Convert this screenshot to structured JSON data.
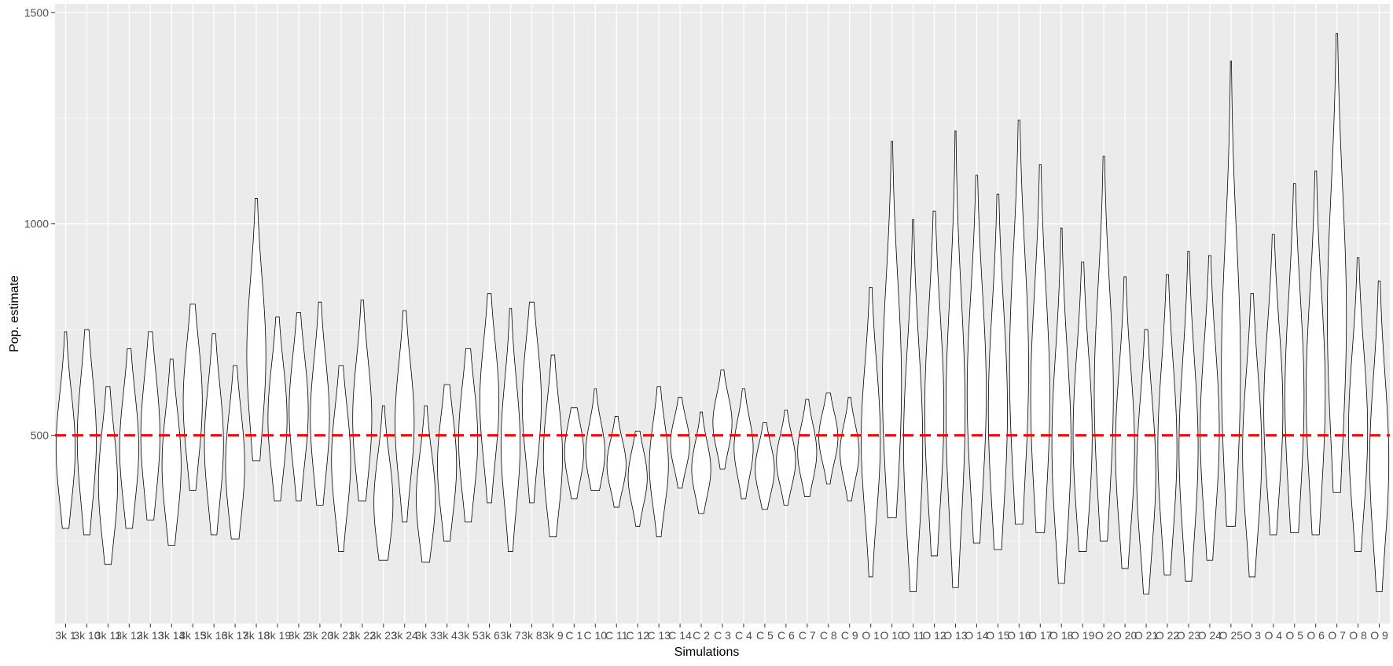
{
  "chart_data": {
    "type": "violin",
    "xlabel": "Simulations",
    "ylabel": "Pop. estimate",
    "ylim": [
      55,
      1520
    ],
    "y_ticks": [
      500,
      1000,
      1500
    ],
    "grid": true,
    "reference_line": {
      "y": 500,
      "color": "#ff0000",
      "style": "dashed"
    },
    "categories": [
      "3k 1",
      "3k 10",
      "3k 11",
      "3k 12",
      "3k 13",
      "3k 14",
      "3k 15",
      "3k 16",
      "3k 17",
      "3k 18",
      "3k 19",
      "3k 2",
      "3k 20",
      "3k 21",
      "3k 22",
      "3k 23",
      "3k 24",
      "3k 3",
      "3k 4",
      "3k 5",
      "3k 6",
      "3k 7",
      "3k 8",
      "3k 9",
      "C 1",
      "C 10",
      "C 11",
      "C 12",
      "C 13",
      "C 14",
      "C 2",
      "C 3",
      "C 4",
      "C 5",
      "C 6",
      "C 7",
      "C 8",
      "C 9",
      "O 1",
      "O 10",
      "O 11",
      "O 12",
      "O 13",
      "O 14",
      "O 15",
      "O 16",
      "O 17",
      "O 18",
      "O 19",
      "O 2",
      "O 20",
      "O 21",
      "O 22",
      "O 23",
      "O 24",
      "O 25",
      "O 3",
      "O 4",
      "O 5",
      "O 6",
      "O 7",
      "O 8",
      "O 9"
    ],
    "violins": [
      {
        "min": 280,
        "max": 745,
        "center": 470,
        "spread": 130
      },
      {
        "min": 265,
        "max": 750,
        "center": 490,
        "spread": 150
      },
      {
        "min": 195,
        "max": 615,
        "center": 385,
        "spread": 130
      },
      {
        "min": 280,
        "max": 705,
        "center": 470,
        "spread": 130
      },
      {
        "min": 300,
        "max": 745,
        "center": 500,
        "spread": 140
      },
      {
        "min": 240,
        "max": 680,
        "center": 430,
        "spread": 130
      },
      {
        "min": 370,
        "max": 810,
        "center": 580,
        "spread": 140
      },
      {
        "min": 265,
        "max": 740,
        "center": 480,
        "spread": 140
      },
      {
        "min": 255,
        "max": 665,
        "center": 430,
        "spread": 130
      },
      {
        "min": 440,
        "max": 1060,
        "center": 690,
        "spread": 180
      },
      {
        "min": 345,
        "max": 780,
        "center": 540,
        "spread": 130
      },
      {
        "min": 345,
        "max": 790,
        "center": 560,
        "spread": 130
      },
      {
        "min": 335,
        "max": 815,
        "center": 540,
        "spread": 140
      },
      {
        "min": 225,
        "max": 665,
        "center": 440,
        "spread": 130
      },
      {
        "min": 345,
        "max": 820,
        "center": 540,
        "spread": 140
      },
      {
        "min": 205,
        "max": 570,
        "center": 340,
        "spread": 110
      },
      {
        "min": 295,
        "max": 795,
        "center": 530,
        "spread": 140
      },
      {
        "min": 200,
        "max": 570,
        "center": 350,
        "spread": 110
      },
      {
        "min": 250,
        "max": 620,
        "center": 430,
        "spread": 120
      },
      {
        "min": 295,
        "max": 705,
        "center": 490,
        "spread": 130
      },
      {
        "min": 340,
        "max": 835,
        "center": 580,
        "spread": 140
      },
      {
        "min": 225,
        "max": 800,
        "center": 480,
        "spread": 150
      },
      {
        "min": 340,
        "max": 815,
        "center": 580,
        "spread": 140
      },
      {
        "min": 260,
        "max": 690,
        "center": 450,
        "spread": 130
      },
      {
        "min": 350,
        "max": 565,
        "center": 460,
        "spread": 70
      },
      {
        "min": 370,
        "max": 610,
        "center": 460,
        "spread": 70
      },
      {
        "min": 330,
        "max": 545,
        "center": 430,
        "spread": 60
      },
      {
        "min": 285,
        "max": 510,
        "center": 400,
        "spread": 65
      },
      {
        "min": 260,
        "max": 615,
        "center": 430,
        "spread": 100
      },
      {
        "min": 375,
        "max": 590,
        "center": 480,
        "spread": 60
      },
      {
        "min": 315,
        "max": 555,
        "center": 420,
        "spread": 65
      },
      {
        "min": 420,
        "max": 655,
        "center": 530,
        "spread": 65
      },
      {
        "min": 350,
        "max": 610,
        "center": 470,
        "spread": 70
      },
      {
        "min": 325,
        "max": 530,
        "center": 420,
        "spread": 60
      },
      {
        "min": 335,
        "max": 560,
        "center": 440,
        "spread": 60
      },
      {
        "min": 355,
        "max": 585,
        "center": 460,
        "spread": 65
      },
      {
        "min": 385,
        "max": 600,
        "center": 495,
        "spread": 60
      },
      {
        "min": 345,
        "max": 590,
        "center": 460,
        "spread": 65
      },
      {
        "min": 165,
        "max": 850,
        "center": 490,
        "spread": 180
      },
      {
        "min": 305,
        "max": 1195,
        "center": 620,
        "spread": 250
      },
      {
        "min": 130,
        "max": 1010,
        "center": 480,
        "spread": 230
      },
      {
        "min": 215,
        "max": 1030,
        "center": 560,
        "spread": 230
      },
      {
        "min": 140,
        "max": 1220,
        "center": 560,
        "spread": 270
      },
      {
        "min": 245,
        "max": 1115,
        "center": 600,
        "spread": 240
      },
      {
        "min": 230,
        "max": 1070,
        "center": 560,
        "spread": 240
      },
      {
        "min": 290,
        "max": 1245,
        "center": 660,
        "spread": 270
      },
      {
        "min": 270,
        "max": 1140,
        "center": 590,
        "spread": 250
      },
      {
        "min": 150,
        "max": 990,
        "center": 480,
        "spread": 220
      },
      {
        "min": 225,
        "max": 910,
        "center": 500,
        "spread": 200
      },
      {
        "min": 250,
        "max": 1160,
        "center": 600,
        "spread": 250
      },
      {
        "min": 185,
        "max": 875,
        "center": 470,
        "spread": 190
      },
      {
        "min": 125,
        "max": 750,
        "center": 410,
        "spread": 180
      },
      {
        "min": 170,
        "max": 880,
        "center": 470,
        "spread": 200
      },
      {
        "min": 155,
        "max": 935,
        "center": 470,
        "spread": 210
      },
      {
        "min": 205,
        "max": 925,
        "center": 510,
        "spread": 200
      },
      {
        "min": 285,
        "max": 1385,
        "center": 660,
        "spread": 300
      },
      {
        "min": 165,
        "max": 835,
        "center": 460,
        "spread": 190
      },
      {
        "min": 265,
        "max": 975,
        "center": 560,
        "spread": 200
      },
      {
        "min": 270,
        "max": 1095,
        "center": 590,
        "spread": 240
      },
      {
        "min": 265,
        "max": 1125,
        "center": 600,
        "spread": 240
      },
      {
        "min": 365,
        "max": 1450,
        "center": 780,
        "spread": 300
      },
      {
        "min": 225,
        "max": 920,
        "center": 510,
        "spread": 190
      },
      {
        "min": 130,
        "max": 865,
        "center": 440,
        "spread": 200
      }
    ]
  }
}
